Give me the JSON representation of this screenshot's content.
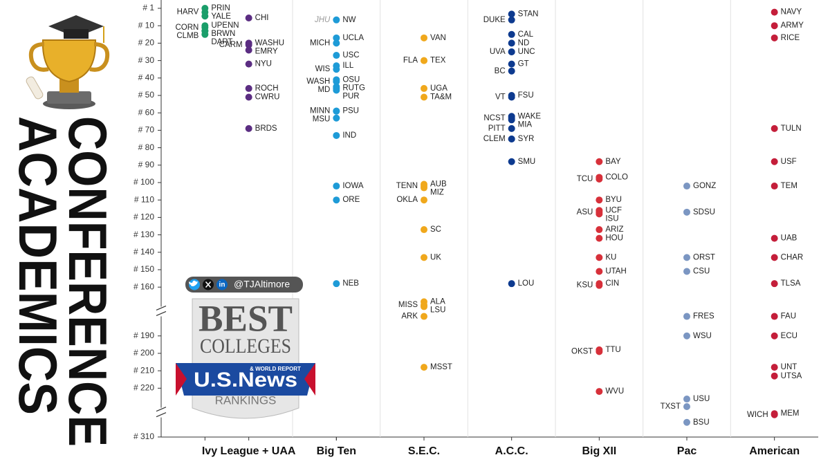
{
  "side_title": {
    "line1": "CONFERENCE",
    "line2": "ACADEMICS"
  },
  "overlay": {
    "handle": "@TJAltimore",
    "linkedin": "in",
    "logo": {
      "line1": "BEST",
      "line2": "COLLEGES",
      "brand": "U.S.News",
      "tagline": "& WORLD REPORT",
      "badge": "RANKINGS"
    }
  },
  "chart_data": {
    "type": "dot",
    "ylim": [
      1,
      310
    ],
    "y_inverted": true,
    "y_breaks": [
      [
        160,
        190
      ],
      [
        220,
        310
      ]
    ],
    "yticks": [
      {
        "value": 1,
        "label": "# 1"
      },
      {
        "value": 10,
        "label": "# 10"
      },
      {
        "value": 20,
        "label": "# 20"
      },
      {
        "value": 30,
        "label": "# 30"
      },
      {
        "value": 40,
        "label": "# 40"
      },
      {
        "value": 50,
        "label": "# 50"
      },
      {
        "value": 60,
        "label": "# 60"
      },
      {
        "value": 70,
        "label": "# 70"
      },
      {
        "value": 80,
        "label": "# 80"
      },
      {
        "value": 90,
        "label": "# 90"
      },
      {
        "value": 100,
        "label": "# 100"
      },
      {
        "value": 110,
        "label": "# 110"
      },
      {
        "value": 120,
        "label": "# 120"
      },
      {
        "value": 130,
        "label": "# 130"
      },
      {
        "value": 140,
        "label": "# 140"
      },
      {
        "value": 150,
        "label": "# 150"
      },
      {
        "value": 160,
        "label": "# 160"
      },
      {
        "value": 190,
        "label": "# 190"
      },
      {
        "value": 200,
        "label": "# 200"
      },
      {
        "value": 210,
        "label": "# 210"
      },
      {
        "value": 220,
        "label": "# 220"
      },
      {
        "value": 310,
        "label": "# 310"
      }
    ],
    "categories": [
      {
        "label": "Ivy League + UAA",
        "series": [
          {
            "color": "#1a9e6a",
            "labels": [
              "PRIN",
              "HARV",
              "YALE",
              "UPENN",
              "CORN",
              "BRWN",
              "CLMB",
              "DART"
            ],
            "values": [
              1,
              3,
              5,
              10,
              11,
              13,
              13,
              15
            ]
          },
          {
            "color": "#5b2d82",
            "labels": [
              "CHI",
              "WASHU",
              "CARM",
              "EMRY",
              "NYU",
              "ROCH",
              "CWRU",
              "BRDS"
            ],
            "values": [
              6,
              20,
              21,
              24,
              32,
              46,
              51,
              69
            ]
          }
        ]
      },
      {
        "label": "Big Ten",
        "series": [
          {
            "color": "#1e9bd7",
            "labels": [
              "NW",
              "UCLA",
              "MICH",
              "USC",
              "ILL",
              "WIS",
              "OSU",
              "WASH",
              "RUTG",
              "MD",
              "PUR",
              "PSU",
              "MINN",
              "MSU",
              "IND",
              "IOWA",
              "ORE",
              "NEB"
            ],
            "values": [
              7,
              17,
              20,
              27,
              33,
              35,
              41,
              42,
              45,
              46,
              47,
              59,
              59,
              63,
              73,
              102,
              110,
              158
            ]
          },
          {
            "color": "#9a9a9a",
            "style": "affiliate",
            "labels": [
              "JHU"
            ],
            "values": [
              7
            ]
          }
        ]
      },
      {
        "label": "S.E.C.",
        "series": [
          {
            "color": "#f0a81c",
            "labels": [
              "VAN",
              "TEX",
              "FLA",
              "UGA",
              "TA&M",
              "AUB",
              "TENN",
              "MIZ",
              "OKLA",
              "SC",
              "UK",
              "ALA",
              "MISS",
              "LSU",
              "ARK",
              "MSST"
            ],
            "values": [
              17,
              30,
              30,
              46,
              51,
              101,
              102,
              103,
              110,
              127,
              143,
              169,
              171,
              172,
              178,
              208
            ]
          }
        ]
      },
      {
        "label": "A.C.C.",
        "series": [
          {
            "color": "#0d3a8f",
            "labels": [
              "STAN",
              "DUKE",
              "CAL",
              "ND",
              "UNC",
              "UVA",
              "GT",
              "BC",
              "FSU",
              "VT",
              "WAKE",
              "NCST",
              "MIA",
              "PITT",
              "SYR",
              "CLEM",
              "SMU",
              "LOU"
            ],
            "values": [
              4,
              7,
              15,
              20,
              25,
              25,
              32,
              36,
              50,
              51,
              62,
              63,
              64,
              69,
              75,
              75,
              88,
              158
            ]
          }
        ]
      },
      {
        "label": "Big XII",
        "series": [
          {
            "color": "#d7303a",
            "labels": [
              "BAY",
              "COLO",
              "TCU",
              "BYU",
              "UCF",
              "ASU",
              "ISU",
              "ARIZ",
              "HOU",
              "KU",
              "UTAH",
              "CIN",
              "KSU",
              "TTU",
              "OKST",
              "WVU"
            ],
            "values": [
              88,
              97,
              98,
              110,
              116,
              117,
              118,
              127,
              132,
              143,
              151,
              158,
              159,
              198,
              199,
              226
            ]
          }
        ]
      },
      {
        "label": "Pac",
        "series": [
          {
            "color": "#7b96c2",
            "labels": [
              "GONZ",
              "SDSU",
              "ORST",
              "CSU",
              "FRES",
              "WSU",
              "USU",
              "TXST",
              "BSU"
            ],
            "values": [
              102,
              117,
              143,
              151,
              178,
              190,
              240,
              254,
              283
            ]
          }
        ]
      },
      {
        "label": "American",
        "series": [
          {
            "color": "#c41e3a",
            "labels": [
              "NAVY",
              "ARMY",
              "RICE",
              "TULN",
              "USF",
              "TEM",
              "UAB",
              "CHAR",
              "TLSA",
              "FAU",
              "ECU",
              "UNT",
              "UTSA",
              "MEM",
              "WICH"
            ],
            "values": [
              3,
              10,
              17,
              69,
              88,
              102,
              132,
              143,
              158,
              178,
              190,
              208,
              213,
              267,
              269
            ]
          }
        ]
      }
    ]
  }
}
